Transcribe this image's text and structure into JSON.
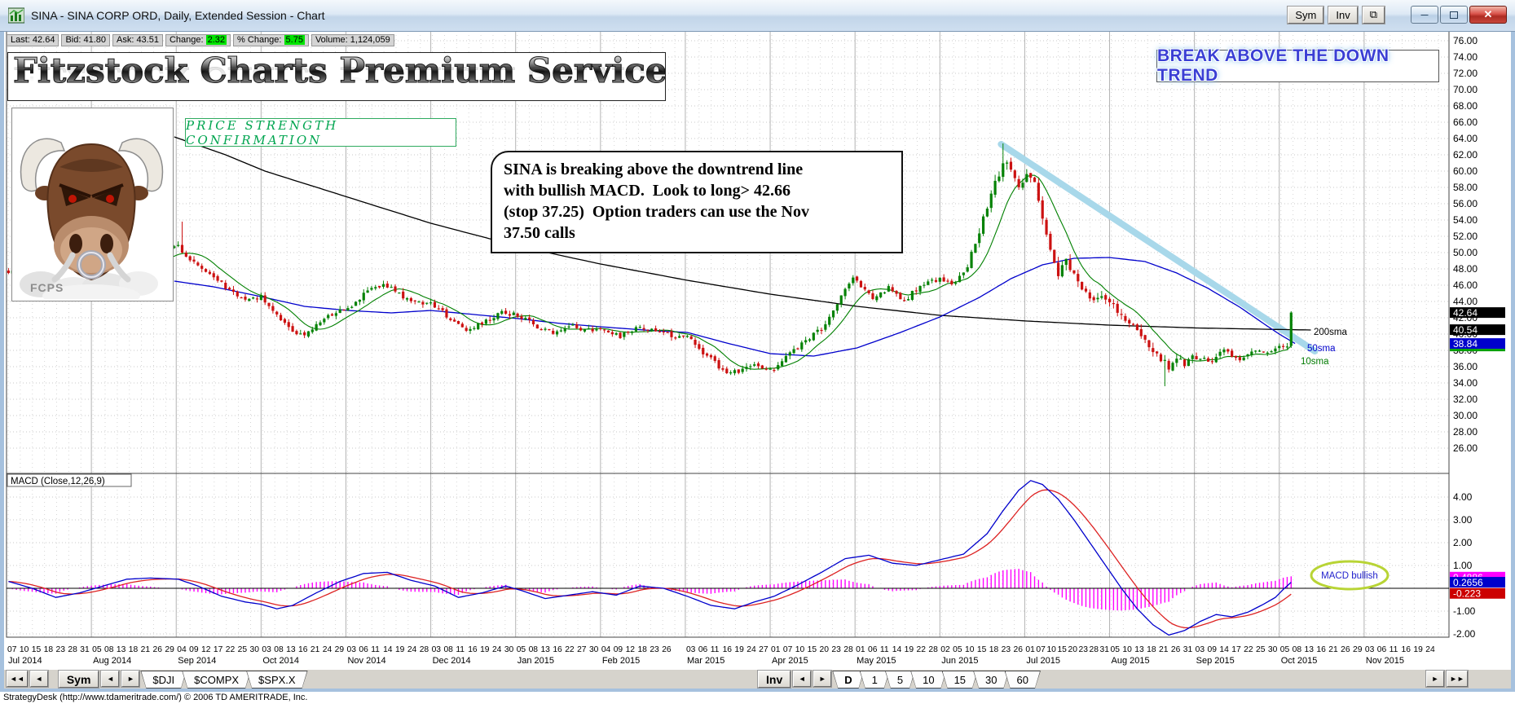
{
  "window": {
    "title": "SINA - SINA CORP ORD, Daily, Extended Session - Chart",
    "sym_button": "Sym",
    "inv_button": "Inv"
  },
  "icons": {
    "prev_double": "◄◄",
    "prev": "◄",
    "next": "►",
    "next_double": "►►",
    "popout": "⧉",
    "minimize": "—",
    "close": "✕"
  },
  "quote": {
    "items": [
      {
        "label": "Last:",
        "value": "42.64",
        "highlight": false
      },
      {
        "label": "Bid:",
        "value": "41.80",
        "highlight": false
      },
      {
        "label": "Ask:",
        "value": "43.51",
        "highlight": false
      },
      {
        "label": "Change:",
        "value": "2.32",
        "highlight": true
      },
      {
        "label": "% Change:",
        "value": "5.75",
        "highlight": true
      },
      {
        "label": "Volume:",
        "value": "1,124,059",
        "highlight": false
      }
    ]
  },
  "banner": {
    "text": "Fitzstock Charts Premium Service"
  },
  "logo": {
    "caption": "FCPS"
  },
  "callouts": {
    "psc": "PRICE STRENGTH CONFIRMATION",
    "break_above": "BREAK ABOVE THE DOWN TREND",
    "note": "SINA is breaking above the downtrend line\nwith bullish MACD.  Look to long> 42.66\n(stop 37.25)  Option traders can use the Nov\n37.50 calls",
    "macd_bullish": "MACD bullish"
  },
  "chart_data": {
    "type": "candlestick",
    "symbol": "SINA",
    "price_axis": {
      "min": 26,
      "max": 76,
      "step": 2
    },
    "macd_axis": {
      "min": -2,
      "max": 4,
      "step": 1
    },
    "macd_label": "MACD (Close,12,26,9)",
    "price_tags": [
      {
        "value": "42.64",
        "bg": "#000000"
      },
      {
        "value": "40.54",
        "bg": "#000000"
      },
      {
        "value": "38.84",
        "bg": "#0000cc"
      }
    ],
    "macd_tags": [
      {
        "value": "0.4886",
        "bg": "#ff00ff"
      },
      {
        "value": "0.2656",
        "bg": "#0000cc"
      },
      {
        "value": "-0.223",
        "bg": "#cc0000"
      }
    ],
    "ma_labels": [
      {
        "label": "200sma",
        "color": "#000000"
      },
      {
        "label": "50sma",
        "color": "#0000cc"
      },
      {
        "label": "10sma",
        "color": "#007a00"
      }
    ],
    "months": [
      {
        "label": "Jul 2014",
        "days": "07 10 15 18 23 28 31"
      },
      {
        "label": "Aug 2014",
        "days": "05 08 13 18 21 26 29"
      },
      {
        "label": "Sep 2014",
        "days": "04 09 12 17 22 25 30"
      },
      {
        "label": "Oct 2014",
        "days": "03 08 13 16 21 24 29"
      },
      {
        "label": "Nov 2014",
        "days": "03 06 11 14 19 24 28"
      },
      {
        "label": "Dec 2014",
        "days": "03 08 11 16 19 24 30"
      },
      {
        "label": "Jan 2015",
        "days": "05 08 13 16 22 27 30"
      },
      {
        "label": "Feb 2015",
        "days": "04 09 12 18 23 26"
      },
      {
        "label": "Mar 2015",
        "days": "03 06 11 16 19 24 27"
      },
      {
        "label": "Apr 2015",
        "days": "01 07 10 15 20 23 28"
      },
      {
        "label": "May 2015",
        "days": "01 06 11 14 19 22 28"
      },
      {
        "label": "Jun 2015",
        "days": "02 05 10 15 18 23 26"
      },
      {
        "label": "Jul 2015",
        "days": "01 07 10 15 20 23 28 31"
      },
      {
        "label": "Aug 2015",
        "days": "05 10 13 18 21 26 31"
      },
      {
        "label": "Sep 2015",
        "days": "03 09 14 17 22 25 30"
      },
      {
        "label": "Oct 2015",
        "days": "05 08 13 16 21 26 29"
      },
      {
        "label": "Nov 2015",
        "days": "03 06 11 16 19 24"
      }
    ],
    "price_anchors": [
      [
        0,
        47.5
      ],
      [
        8,
        49.0
      ],
      [
        16,
        47.0
      ],
      [
        28,
        48.0
      ],
      [
        38,
        49.5
      ],
      [
        43,
        51.0
      ],
      [
        45,
        49.5
      ],
      [
        48,
        48.5
      ],
      [
        52,
        47.0
      ],
      [
        56,
        45.5
      ],
      [
        60,
        44.2
      ],
      [
        64,
        44.5
      ],
      [
        68,
        42.5
      ],
      [
        72,
        40.5
      ],
      [
        75,
        39.8
      ],
      [
        78,
        41.0
      ],
      [
        82,
        42.5
      ],
      [
        86,
        43.2
      ],
      [
        90,
        44.8
      ],
      [
        95,
        46.2
      ],
      [
        100,
        44.6
      ],
      [
        104,
        43.8
      ],
      [
        108,
        43.5
      ],
      [
        112,
        41.8
      ],
      [
        116,
        40.6
      ],
      [
        120,
        41.5
      ],
      [
        125,
        42.6
      ],
      [
        129,
        42.4
      ],
      [
        133,
        41.2
      ],
      [
        138,
        40.2
      ],
      [
        143,
        41.0
      ],
      [
        147,
        40.4
      ],
      [
        151,
        40.6
      ],
      [
        155,
        39.7
      ],
      [
        160,
        40.8
      ],
      [
        165,
        40.1
      ],
      [
        172,
        39.6
      ],
      [
        176,
        37.8
      ],
      [
        181,
        35.6
      ],
      [
        185,
        35.2
      ],
      [
        189,
        36.2
      ],
      [
        194,
        35.8
      ],
      [
        197,
        37.2
      ],
      [
        202,
        39.2
      ],
      [
        207,
        41.0
      ],
      [
        211,
        44.5
      ],
      [
        214,
        47.2
      ],
      [
        215,
        46.4
      ],
      [
        219,
        44.6
      ],
      [
        223,
        45.6
      ],
      [
        227,
        44.2
      ],
      [
        231,
        45.8
      ],
      [
        236,
        46.8
      ],
      [
        240,
        46.2
      ],
      [
        243,
        48.5
      ],
      [
        246,
        52.5
      ],
      [
        248,
        55.5
      ],
      [
        250,
        58.5
      ],
      [
        252,
        61.2
      ],
      [
        254,
        60.0
      ],
      [
        256,
        57.8
      ],
      [
        258,
        59.8
      ],
      [
        260,
        58.2
      ],
      [
        262,
        54.5
      ],
      [
        264,
        50.5
      ],
      [
        266,
        47.5
      ],
      [
        268,
        48.8
      ],
      [
        271,
        46.5
      ],
      [
        274,
        44.8
      ],
      [
        277,
        44.2
      ],
      [
        280,
        43.4
      ],
      [
        283,
        42.0
      ],
      [
        287,
        39.8
      ],
      [
        291,
        37.6
      ],
      [
        294,
        35.9
      ],
      [
        296,
        36.8
      ],
      [
        299,
        36.4
      ],
      [
        301,
        37.4
      ],
      [
        304,
        36.6
      ],
      [
        308,
        38.0
      ],
      [
        312,
        37.0
      ],
      [
        316,
        38.2
      ],
      [
        319,
        37.6
      ],
      [
        322,
        38.4
      ],
      [
        324,
        38.6
      ],
      [
        325,
        42.64
      ]
    ],
    "sma200_anchors": [
      [
        42,
        64.2
      ],
      [
        55,
        62.0
      ],
      [
        65,
        60.0
      ],
      [
        86,
        56.8
      ],
      [
        107,
        53.6
      ],
      [
        129,
        50.8
      ],
      [
        150,
        48.6
      ],
      [
        172,
        46.6
      ],
      [
        193,
        44.9
      ],
      [
        215,
        43.4
      ],
      [
        236,
        42.3
      ],
      [
        258,
        41.6
      ],
      [
        279,
        41.1
      ],
      [
        301,
        40.75
      ],
      [
        325,
        40.54
      ],
      [
        330,
        40.5
      ]
    ],
    "sma50_anchors": [
      [
        42,
        46.5
      ],
      [
        52,
        45.8
      ],
      [
        64,
        44.6
      ],
      [
        75,
        43.4
      ],
      [
        86,
        42.9
      ],
      [
        97,
        42.6
      ],
      [
        107,
        42.9
      ],
      [
        118,
        42.4
      ],
      [
        129,
        41.9
      ],
      [
        140,
        41.3
      ],
      [
        150,
        40.9
      ],
      [
        161,
        40.5
      ],
      [
        172,
        40.2
      ],
      [
        182,
        38.9
      ],
      [
        193,
        37.6
      ],
      [
        204,
        37.3
      ],
      [
        215,
        38.3
      ],
      [
        226,
        40.2
      ],
      [
        236,
        42.1
      ],
      [
        246,
        44.5
      ],
      [
        254,
        46.8
      ],
      [
        262,
        48.5
      ],
      [
        270,
        49.3
      ],
      [
        279,
        49.4
      ],
      [
        288,
        48.9
      ],
      [
        296,
        47.5
      ],
      [
        304,
        45.6
      ],
      [
        312,
        43.3
      ],
      [
        318,
        41.3
      ],
      [
        322,
        40.0
      ],
      [
        326,
        38.84
      ]
    ],
    "macd_anchors": [
      [
        0,
        0.3
      ],
      [
        6,
        0.0
      ],
      [
        12,
        -0.4
      ],
      [
        18,
        -0.2
      ],
      [
        24,
        0.1
      ],
      [
        30,
        0.4
      ],
      [
        36,
        0.45
      ],
      [
        43,
        0.4
      ],
      [
        48,
        0.1
      ],
      [
        54,
        -0.35
      ],
      [
        60,
        -0.6
      ],
      [
        64,
        -0.7
      ],
      [
        68,
        -0.9
      ],
      [
        72,
        -0.75
      ],
      [
        78,
        -0.2
      ],
      [
        84,
        0.3
      ],
      [
        90,
        0.65
      ],
      [
        96,
        0.7
      ],
      [
        102,
        0.35
      ],
      [
        108,
        0.1
      ],
      [
        114,
        -0.4
      ],
      [
        120,
        -0.2
      ],
      [
        126,
        0.1
      ],
      [
        130,
        -0.1
      ],
      [
        136,
        -0.45
      ],
      [
        142,
        -0.3
      ],
      [
        148,
        -0.15
      ],
      [
        154,
        -0.3
      ],
      [
        160,
        0.1
      ],
      [
        166,
        0.0
      ],
      [
        172,
        -0.35
      ],
      [
        178,
        -0.75
      ],
      [
        184,
        -0.9
      ],
      [
        189,
        -0.6
      ],
      [
        194,
        -0.35
      ],
      [
        200,
        0.15
      ],
      [
        206,
        0.7
      ],
      [
        212,
        1.3
      ],
      [
        218,
        1.45
      ],
      [
        224,
        1.1
      ],
      [
        230,
        1.0
      ],
      [
        236,
        1.25
      ],
      [
        242,
        1.5
      ],
      [
        248,
        2.4
      ],
      [
        252,
        3.4
      ],
      [
        256,
        4.3
      ],
      [
        259,
        4.72
      ],
      [
        262,
        4.55
      ],
      [
        266,
        3.9
      ],
      [
        270,
        3.0
      ],
      [
        274,
        2.0
      ],
      [
        278,
        1.0
      ],
      [
        282,
        0.0
      ],
      [
        286,
        -0.9
      ],
      [
        290,
        -1.6
      ],
      [
        294,
        -2.05
      ],
      [
        298,
        -1.85
      ],
      [
        302,
        -1.45
      ],
      [
        306,
        -1.15
      ],
      [
        310,
        -1.25
      ],
      [
        314,
        -1.05
      ],
      [
        318,
        -0.7
      ],
      [
        321,
        -0.4
      ],
      [
        323,
        -0.05
      ],
      [
        325,
        0.2656
      ]
    ],
    "trendline": {
      "from_day": 251.5,
      "from_price": 63.3,
      "to_day": 331,
      "to_price": 37.9,
      "color": "#a8d8ea"
    },
    "specials": {
      "44": {
        "high": 53.8
      },
      "252": {
        "high": 63.4
      },
      "293": {
        "low": 33.6
      },
      "325": {
        "open": 38.55,
        "close": 42.64,
        "high": 42.8,
        "low": 38.3
      }
    },
    "colors": {
      "up": "#058205",
      "down": "#cc1111",
      "sma200": "#000000",
      "sma50": "#0000cc",
      "sma10": "#008000",
      "macd_line": "#0000cc",
      "macd_signal": "#dd2222",
      "histogram": "#ff00ff",
      "grid": "#c8c8c8",
      "month_line": "#b4b4b4",
      "trend": "#a8d8ea",
      "ellipse": "#b8d435",
      "ellipse_text": "#2222cc"
    }
  },
  "toolbar": {
    "sym_button": "Sym",
    "inv_button": "Inv",
    "symbol_tabs": [
      "$DJI",
      "$COMPX",
      "$SPX.X"
    ],
    "period_tabs": [
      "D",
      "1",
      "5",
      "10",
      "15",
      "30",
      "60"
    ],
    "active_period": "D"
  },
  "statusbar": {
    "text": "StrategyDesk (http://www.tdameritrade.com/) © 2006 TD AMERITRADE, Inc."
  }
}
